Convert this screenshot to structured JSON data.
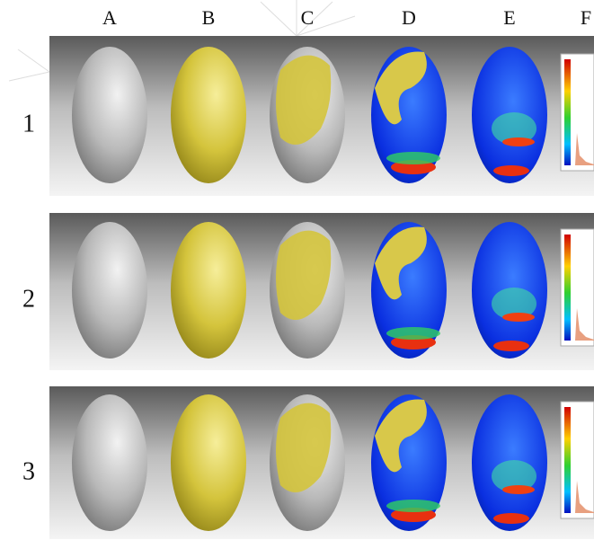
{
  "column_labels": [
    "A",
    "B",
    "C",
    "D",
    "E",
    "F"
  ],
  "row_labels": [
    "1",
    "2",
    "3"
  ]
}
